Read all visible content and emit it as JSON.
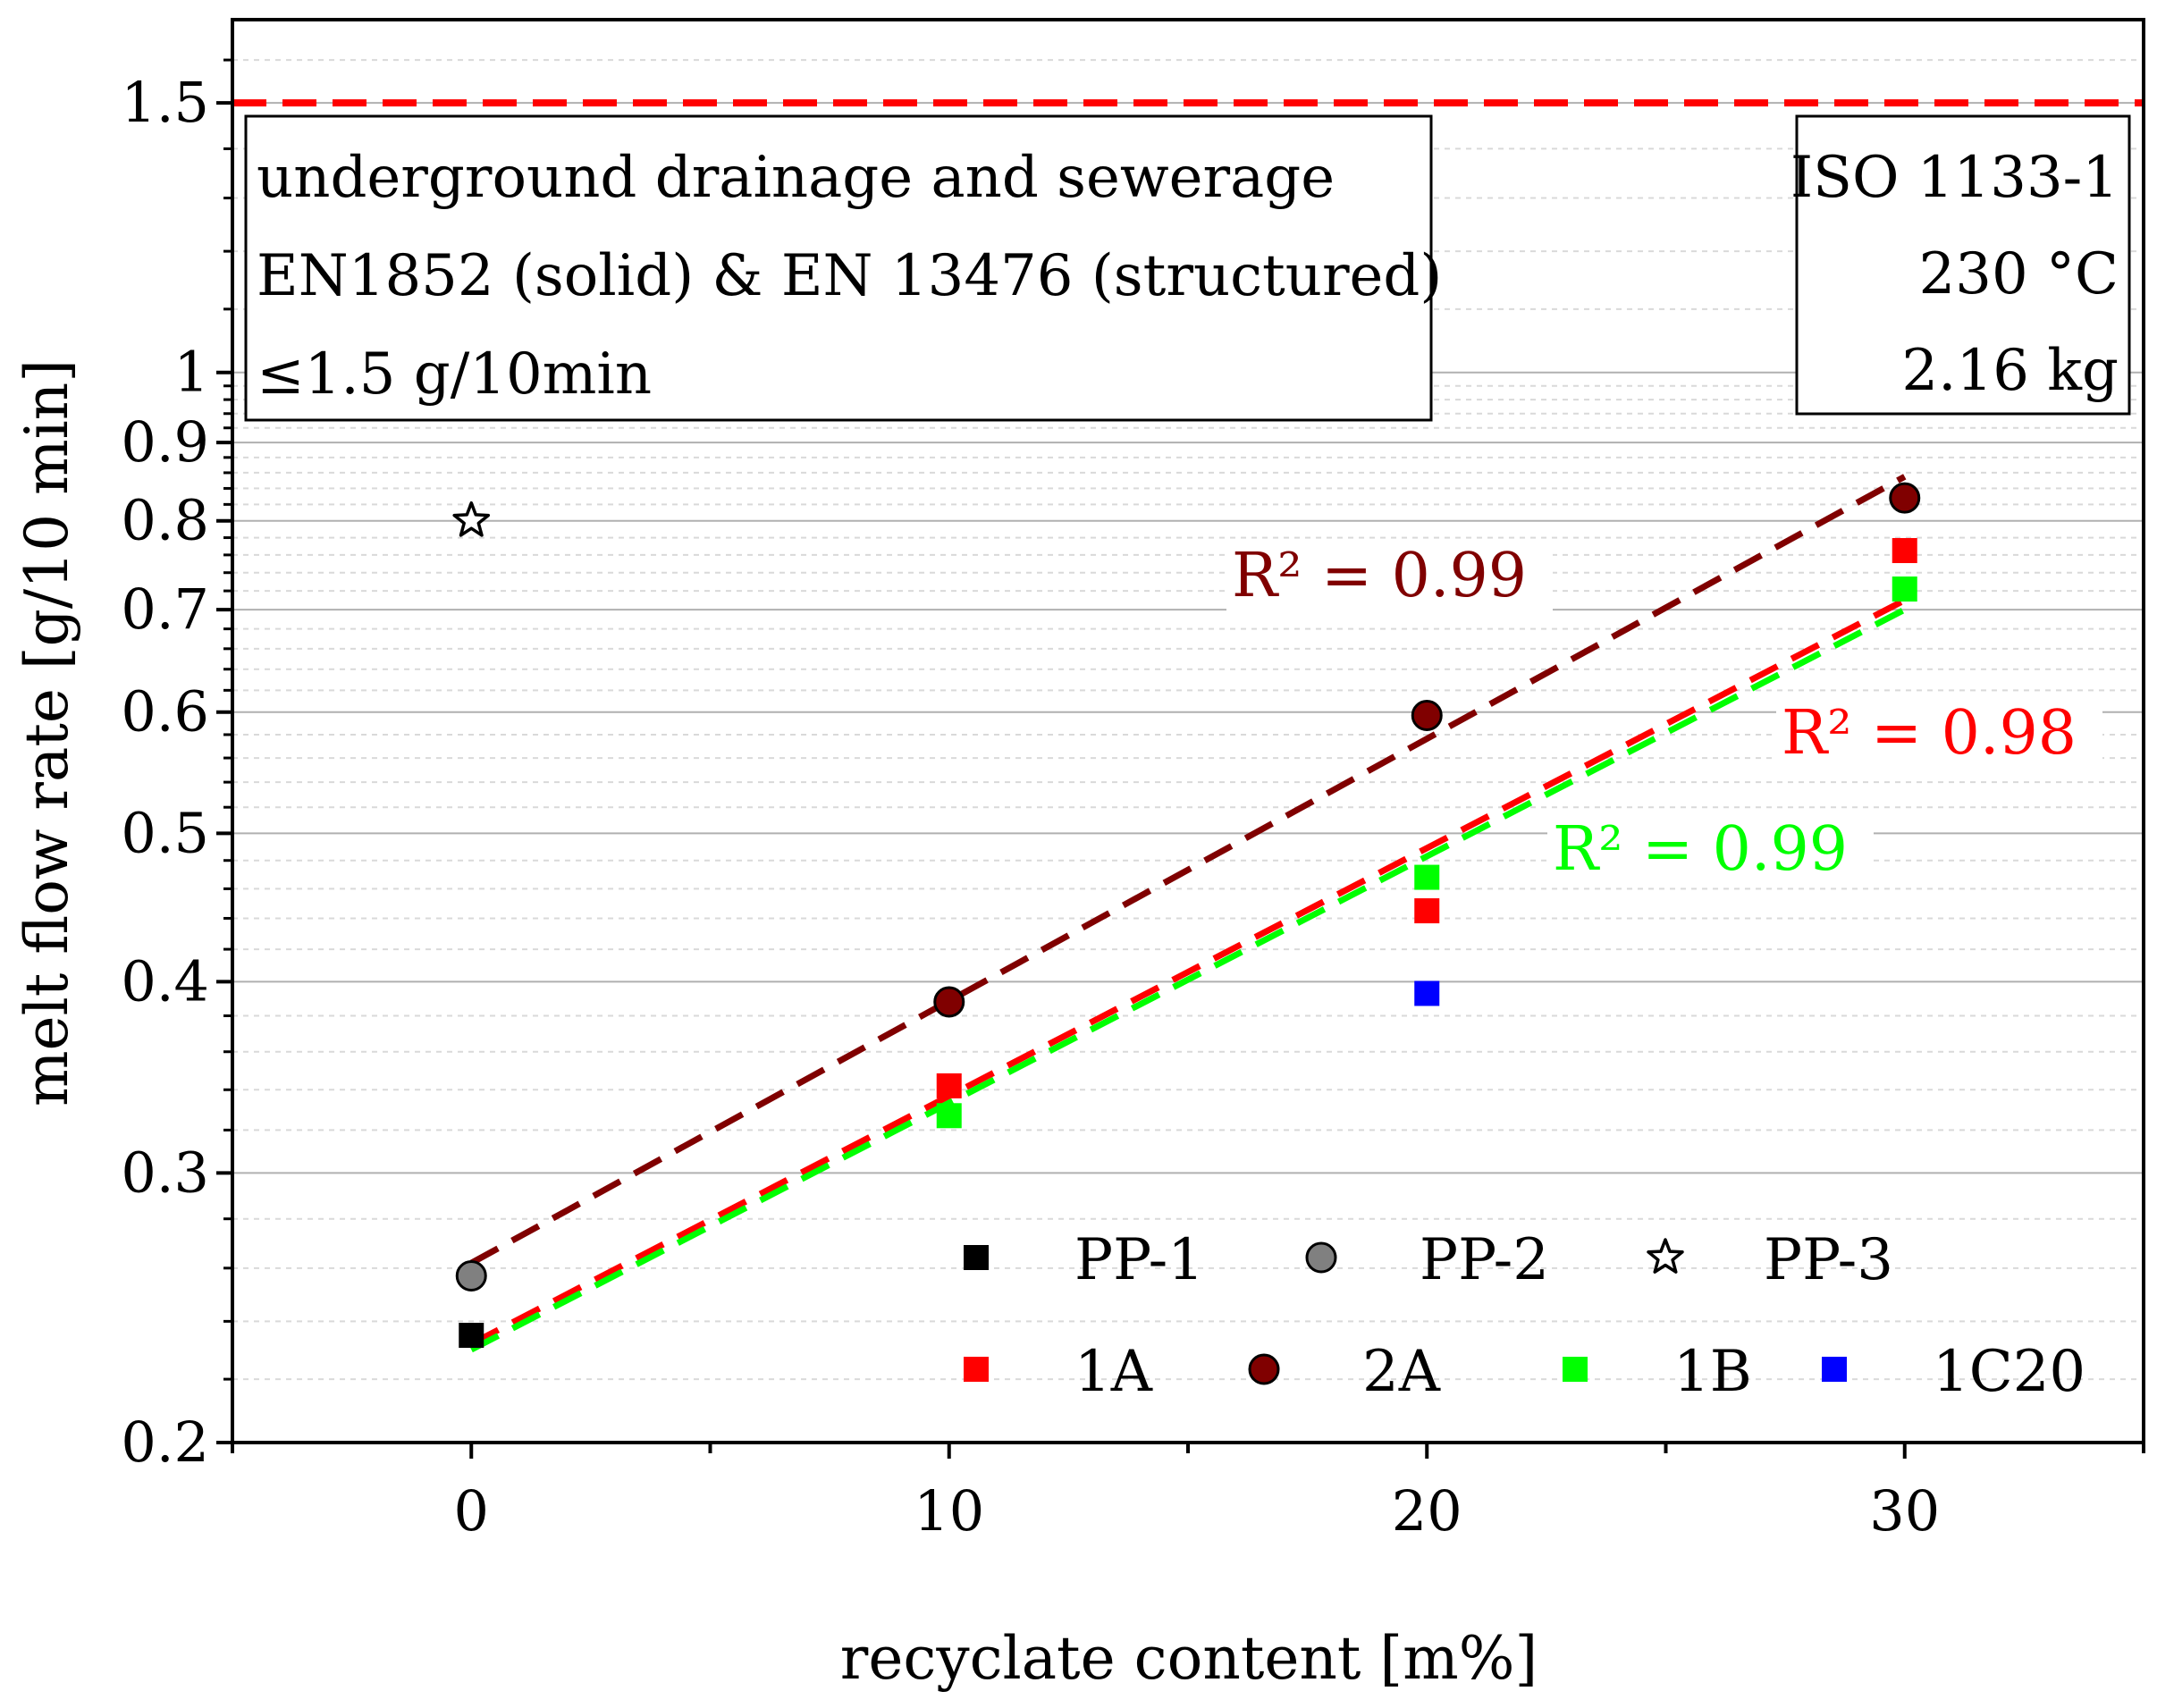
{
  "chart_data": {
    "type": "scatter",
    "y_scale": "log",
    "xlabel": "recyclate content [m%]",
    "ylabel": "melt flow rate [g/10 min]",
    "xlim": [
      -5,
      35
    ],
    "ylim": [
      0.2,
      1.7
    ],
    "x_ticks": [
      0,
      10,
      20,
      30
    ],
    "x_tick_labels": [
      "0",
      "10",
      "20",
      "30"
    ],
    "y_ticks": [
      0.2,
      0.3,
      0.4,
      0.5,
      0.6,
      0.7,
      0.8,
      0.9,
      1,
      1.5
    ],
    "y_tick_labels": [
      "0.2",
      "0.3",
      "0.4",
      "0.5",
      "0.6",
      "0.7",
      "0.8",
      "0.9",
      "1",
      "1.5"
    ],
    "limit_line": {
      "y": 1.5,
      "color": "#ff0000"
    },
    "annotation_box_left": {
      "lines": [
        "underground drainage and sewerage",
        "EN1852 (solid) & EN 13476 (structured)",
        "≤1.5 g/10min"
      ]
    },
    "annotation_box_right": {
      "lines": [
        "ISO 1133-1",
        "230 °C",
        "2.16 kg"
      ]
    },
    "series": [
      {
        "name": "PP-1",
        "marker": "square",
        "color": "#000000",
        "x": [
          0
        ],
        "y": [
          0.235
        ]
      },
      {
        "name": "PP-2",
        "marker": "circle",
        "color": "#808080",
        "x": [
          0
        ],
        "y": [
          0.257
        ]
      },
      {
        "name": "PP-3",
        "marker": "star",
        "color": "#ffffff",
        "x": [
          0
        ],
        "y": [
          0.8
        ]
      },
      {
        "name": "1A",
        "marker": "square",
        "color": "#ff0000",
        "x": [
          10,
          20,
          30
        ],
        "y": [
          0.342,
          0.445,
          0.765
        ]
      },
      {
        "name": "2A",
        "marker": "circle",
        "color": "#800000",
        "x": [
          10,
          20,
          30
        ],
        "y": [
          0.388,
          0.597,
          0.828
        ]
      },
      {
        "name": "1B",
        "marker": "square",
        "color": "#00ff00",
        "x": [
          10,
          20,
          30
        ],
        "y": [
          0.327,
          0.468,
          0.722
        ]
      },
      {
        "name": "1C20",
        "marker": "square",
        "color": "#0000ff",
        "x": [
          20
        ],
        "y": [
          0.393
        ]
      }
    ],
    "trendlines": [
      {
        "series": "2A",
        "color": "#800000",
        "x": [
          0,
          30
        ],
        "y": [
          0.262,
          0.855
        ],
        "r2_label": "R² = 0.99"
      },
      {
        "series": "1A",
        "color": "#ff0000",
        "x": [
          0,
          30
        ],
        "y": [
          0.232,
          0.71
        ],
        "r2_label": "R² = 0.98"
      },
      {
        "series": "1B",
        "color": "#00ff00",
        "x": [
          0,
          30
        ],
        "y": [
          0.23,
          0.7
        ],
        "r2_label": "R² = 0.99"
      }
    ],
    "legend": {
      "placement": "bottom-right",
      "rows": [
        [
          "PP-1",
          "PP-2",
          "PP-3"
        ],
        [
          "1A",
          "2A",
          "1B",
          "1C20"
        ]
      ]
    }
  }
}
